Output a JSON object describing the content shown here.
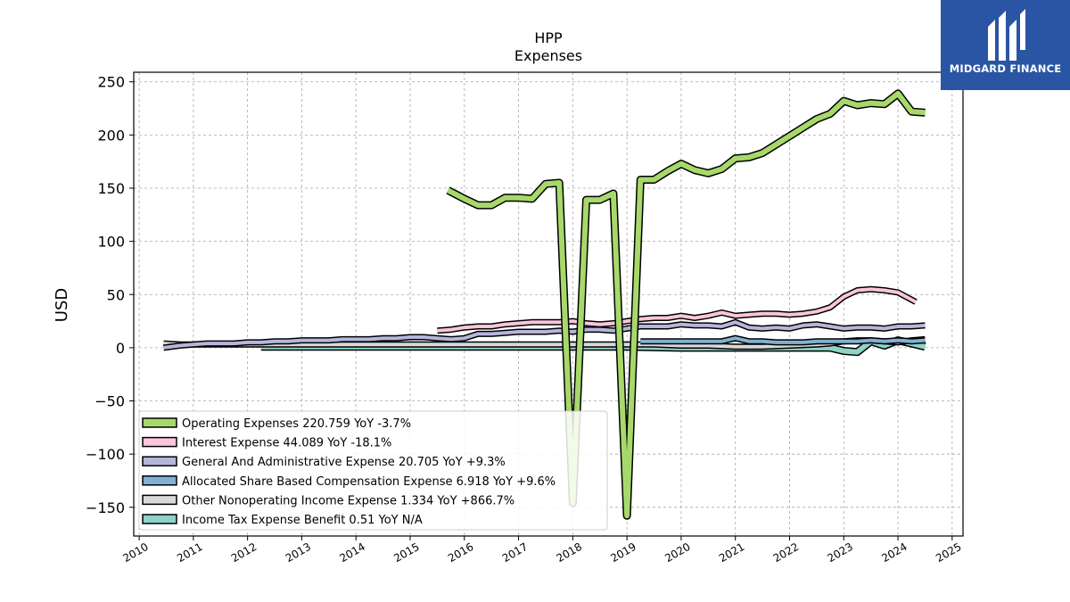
{
  "brand": {
    "name": "MIDGARD FINANCE",
    "color": "#2a55a4"
  },
  "chart_data": {
    "type": "line",
    "title": "HPP",
    "subtitle": "Expenses",
    "xlabel": "",
    "ylabel": "USD",
    "xlim": [
      2009.9,
      2025.2
    ],
    "ylim": [
      -177,
      259
    ],
    "x_ticks": [
      "2010",
      "2011",
      "2012",
      "2013",
      "2014",
      "2015",
      "2016",
      "2017",
      "2018",
      "2019",
      "2020",
      "2021",
      "2022",
      "2023",
      "2024",
      "2025"
    ],
    "y_ticks": [
      "250",
      "200",
      "150",
      "100",
      "50",
      "0",
      "−50",
      "−100",
      "−150"
    ],
    "y_tick_values": [
      250,
      200,
      150,
      100,
      50,
      0,
      -50,
      -100,
      -150
    ],
    "grid": true,
    "legend_position": "lower-left",
    "series": [
      {
        "name": "Operating Expenses  220.759 YoY -3.7%",
        "color": "#a6d96a",
        "width": 6,
        "points": [
          [
            2015.7,
            148
          ],
          [
            2016.0,
            140
          ],
          [
            2016.25,
            134
          ],
          [
            2016.5,
            134
          ],
          [
            2016.75,
            141
          ],
          [
            2017.0,
            141
          ],
          [
            2017.25,
            140
          ],
          [
            2017.5,
            154
          ],
          [
            2017.75,
            155
          ],
          [
            2018.0,
            -146
          ],
          [
            2018.25,
            139
          ],
          [
            2018.5,
            139
          ],
          [
            2018.75,
            145
          ],
          [
            2019.0,
            -158
          ],
          [
            2019.25,
            158
          ],
          [
            2019.5,
            158
          ],
          [
            2019.75,
            166
          ],
          [
            2020.0,
            173
          ],
          [
            2020.25,
            167
          ],
          [
            2020.5,
            164
          ],
          [
            2020.75,
            168
          ],
          [
            2021.0,
            178
          ],
          [
            2021.25,
            179
          ],
          [
            2021.5,
            183
          ],
          [
            2021.75,
            191
          ],
          [
            2022.0,
            199
          ],
          [
            2022.25,
            207
          ],
          [
            2022.5,
            215
          ],
          [
            2022.75,
            220
          ],
          [
            2023.0,
            232
          ],
          [
            2023.25,
            228
          ],
          [
            2023.5,
            230
          ],
          [
            2023.75,
            229
          ],
          [
            2024.0,
            239
          ],
          [
            2024.25,
            222
          ],
          [
            2024.5,
            221
          ]
        ]
      },
      {
        "name": "Interest Expense  44.089 YoY -18.1%",
        "color": "#fbc5db",
        "width": 4,
        "points": [
          [
            2015.5,
            16
          ],
          [
            2015.75,
            17
          ],
          [
            2016.0,
            19
          ],
          [
            2016.25,
            20
          ],
          [
            2016.5,
            20
          ],
          [
            2016.75,
            22
          ],
          [
            2017.0,
            23
          ],
          [
            2017.25,
            24
          ],
          [
            2017.5,
            24
          ],
          [
            2017.75,
            24
          ],
          [
            2018.0,
            25
          ],
          [
            2018.25,
            23
          ],
          [
            2018.5,
            22
          ],
          [
            2018.75,
            23
          ],
          [
            2019.0,
            25
          ],
          [
            2019.25,
            27
          ],
          [
            2019.5,
            28
          ],
          [
            2019.75,
            28
          ],
          [
            2020.0,
            30
          ],
          [
            2020.25,
            28
          ],
          [
            2020.5,
            30
          ],
          [
            2020.75,
            33
          ],
          [
            2021.0,
            30
          ],
          [
            2021.25,
            31
          ],
          [
            2021.5,
            32
          ],
          [
            2021.75,
            32
          ],
          [
            2022.0,
            31
          ],
          [
            2022.25,
            32
          ],
          [
            2022.5,
            34
          ],
          [
            2022.75,
            38
          ],
          [
            2023.0,
            48
          ],
          [
            2023.25,
            54
          ],
          [
            2023.5,
            55
          ],
          [
            2023.75,
            54
          ],
          [
            2024.0,
            52
          ],
          [
            2024.33,
            43
          ]
        ]
      },
      {
        "name": "General And Administrative Expense  20.705 YoY +9.3%",
        "color": "#b6b6dc",
        "width": 4,
        "points": [
          [
            2010.45,
            0
          ],
          [
            2010.75,
            2
          ],
          [
            2011.0,
            3
          ],
          [
            2011.25,
            4
          ],
          [
            2011.5,
            4
          ],
          [
            2011.75,
            4
          ],
          [
            2012.0,
            5
          ],
          [
            2012.25,
            5
          ],
          [
            2012.5,
            6
          ],
          [
            2012.75,
            6
          ],
          [
            2013.0,
            7
          ],
          [
            2013.25,
            7
          ],
          [
            2013.5,
            7
          ],
          [
            2013.75,
            8
          ],
          [
            2014.0,
            8
          ],
          [
            2014.25,
            8
          ],
          [
            2014.5,
            9
          ],
          [
            2014.75,
            9
          ],
          [
            2015.0,
            10
          ],
          [
            2015.25,
            10
          ],
          [
            2015.5,
            9
          ],
          [
            2015.75,
            8
          ],
          [
            2016.0,
            9
          ],
          [
            2016.25,
            13
          ],
          [
            2016.5,
            13
          ],
          [
            2016.75,
            14
          ],
          [
            2017.0,
            15
          ],
          [
            2017.25,
            15
          ],
          [
            2017.5,
            15
          ],
          [
            2017.75,
            16
          ],
          [
            2018.0,
            15
          ],
          [
            2018.25,
            17
          ],
          [
            2018.5,
            17
          ],
          [
            2018.75,
            16
          ],
          [
            2019.0,
            18
          ],
          [
            2019.25,
            20
          ],
          [
            2019.5,
            20
          ],
          [
            2019.75,
            20
          ],
          [
            2020.0,
            22
          ],
          [
            2020.25,
            21
          ],
          [
            2020.5,
            21
          ],
          [
            2020.75,
            20
          ],
          [
            2021.0,
            24
          ],
          [
            2021.25,
            19
          ],
          [
            2021.5,
            18
          ],
          [
            2021.75,
            19
          ],
          [
            2022.0,
            18
          ],
          [
            2022.25,
            21
          ],
          [
            2022.5,
            22
          ],
          [
            2022.75,
            20
          ],
          [
            2023.0,
            18
          ],
          [
            2023.25,
            19
          ],
          [
            2023.5,
            19
          ],
          [
            2023.75,
            18
          ],
          [
            2024.0,
            20
          ],
          [
            2024.25,
            20
          ],
          [
            2024.5,
            21
          ]
        ]
      },
      {
        "name": "Allocated Share Based Compensation Expense  6.918 YoY +9.6%",
        "color": "#80b1d3",
        "width": 4,
        "points": [
          [
            2019.25,
            6
          ],
          [
            2019.5,
            6
          ],
          [
            2019.75,
            6
          ],
          [
            2020.0,
            6
          ],
          [
            2020.25,
            6
          ],
          [
            2020.5,
            6
          ],
          [
            2020.75,
            6
          ],
          [
            2021.0,
            9
          ],
          [
            2021.25,
            6
          ],
          [
            2021.5,
            6
          ],
          [
            2021.75,
            5
          ],
          [
            2022.0,
            5
          ],
          [
            2022.25,
            5
          ],
          [
            2022.5,
            6
          ],
          [
            2022.75,
            6
          ],
          [
            2023.0,
            6
          ],
          [
            2023.25,
            6
          ],
          [
            2023.5,
            7
          ],
          [
            2023.75,
            6
          ],
          [
            2024.0,
            7
          ],
          [
            2024.25,
            6
          ],
          [
            2024.5,
            7
          ]
        ]
      },
      {
        "name": "Other Nonoperating Income Expense  1.334 YoY +866.7%",
        "color": "#d9d9d9",
        "width": 4,
        "points": [
          [
            2010.45,
            4
          ],
          [
            2010.75,
            3
          ],
          [
            2011.0,
            3
          ],
          [
            2011.5,
            3
          ],
          [
            2012.0,
            3
          ],
          [
            2012.5,
            3
          ],
          [
            2013.0,
            3
          ],
          [
            2013.5,
            3
          ],
          [
            2014.0,
            3
          ],
          [
            2014.5,
            3
          ],
          [
            2015.0,
            3
          ],
          [
            2015.5,
            3
          ],
          [
            2016.0,
            3
          ],
          [
            2016.5,
            3
          ],
          [
            2017.0,
            3
          ],
          [
            2017.5,
            3
          ],
          [
            2018.0,
            3
          ],
          [
            2018.5,
            3
          ],
          [
            2019.0,
            3
          ],
          [
            2019.5,
            3
          ],
          [
            2020.0,
            2
          ],
          [
            2020.5,
            2
          ],
          [
            2021.0,
            1
          ],
          [
            2021.5,
            1
          ],
          [
            2022.0,
            2
          ],
          [
            2022.5,
            3
          ],
          [
            2022.75,
            4
          ],
          [
            2023.0,
            6
          ],
          [
            2023.25,
            7
          ],
          [
            2023.5,
            7
          ],
          [
            2023.75,
            6
          ],
          [
            2024.0,
            5
          ],
          [
            2024.25,
            7
          ],
          [
            2024.5,
            8
          ]
        ]
      },
      {
        "name": "Income Tax Expense Benefit  0.51 YoY N/A",
        "color": "#8dd3c7",
        "width": 6,
        "points": [
          [
            2012.25,
            1
          ],
          [
            2013.0,
            1
          ],
          [
            2014.0,
            1
          ],
          [
            2015.0,
            1
          ],
          [
            2016.0,
            1
          ],
          [
            2017.0,
            1
          ],
          [
            2018.0,
            1
          ],
          [
            2019.0,
            1
          ],
          [
            2020.0,
            0
          ],
          [
            2021.0,
            0
          ],
          [
            2022.0,
            0
          ],
          [
            2022.75,
            0
          ],
          [
            2023.0,
            -3
          ],
          [
            2023.25,
            -4
          ],
          [
            2023.5,
            6
          ],
          [
            2023.75,
            2
          ],
          [
            2024.0,
            7
          ],
          [
            2024.25,
            4
          ],
          [
            2024.5,
            1
          ]
        ]
      }
    ]
  }
}
